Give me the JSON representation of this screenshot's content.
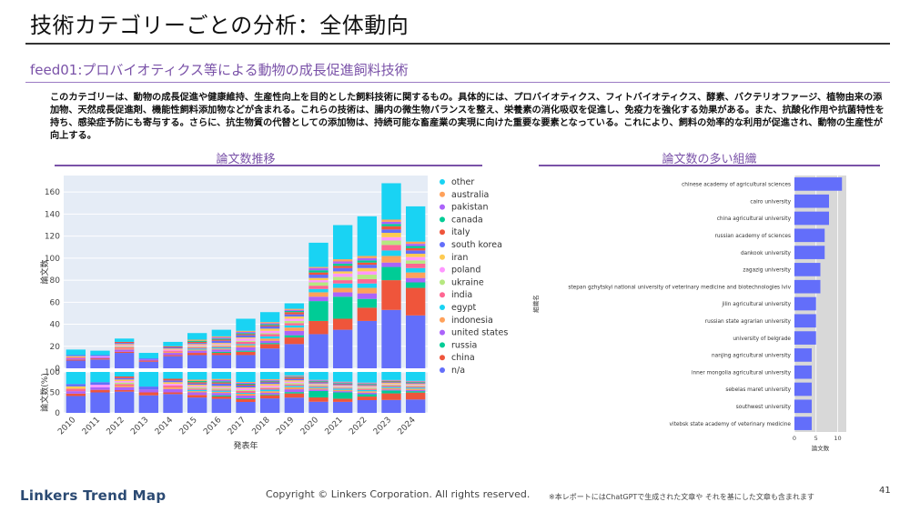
{
  "header": {
    "title": "技術カテゴリーごとの分析：全体動向",
    "subtitle": "feed01:プロバイオティクス等による動物の成長促進飼料技術",
    "description": "このカテゴリーは、動物の成長促進や健康維持、生産性向上を目的とした飼料技術に関するもの。具体的には、プロバイオティクス、フィトバイオティクス、酵素、バクテリオファージ、植物由来の添加物、天然成長促進剤、機能性飼料添加物などが含まれる。これらの技術は、腸内の微生物バランスを整え、栄養素の消化吸収を促進し、免疫力を強化する効果がある。また、抗酸化作用や抗菌特性を持ち、感染症予防にも寄与する。さらに、抗生物質の代替としての添加物は、持続可能な畜産業の実現に向けた重要な要素となっている。これにより、飼料の効率的な利用が促進され、動物の生産性が向上する。"
  },
  "left_panel": {
    "title": "論文数推移"
  },
  "right_panel": {
    "title": "論文数の多い組織"
  },
  "footer": {
    "logo": "Linkers Trend Map",
    "copyright": "Copyright © Linkers Corporation. All rights reserved.",
    "note": "※本レポートにはChatGPTで生成された文章や それを基にした文章も含まれます",
    "page": "41"
  },
  "chart_data": [
    {
      "type": "bar",
      "stacked": true,
      "xlabel": "発表年",
      "ylabel": "論文数",
      "ylabel_share": "論文数(%)",
      "ylim": [
        0,
        175
      ],
      "yticks": [
        0,
        20,
        40,
        60,
        80,
        100,
        120,
        140,
        160
      ],
      "share_yticks": [
        0,
        50,
        100
      ],
      "categories": [
        "2010",
        "2011",
        "2012",
        "2013",
        "2014",
        "2015",
        "2016",
        "2017",
        "2018",
        "2019",
        "2020",
        "2021",
        "2022",
        "2023",
        "2024"
      ],
      "series": [
        {
          "name": "n/a",
          "color": "#636efa",
          "values": [
            7,
            8,
            14,
            6,
            11,
            12,
            12,
            12,
            18,
            22,
            31,
            35,
            43,
            53,
            48
          ]
        },
        {
          "name": "china",
          "color": "#ef553b",
          "values": [
            1,
            1,
            1,
            1,
            1,
            2,
            2,
            3,
            4,
            6,
            12,
            10,
            12,
            27,
            25
          ]
        },
        {
          "name": "russia",
          "color": "#00cc96",
          "values": [
            0,
            0,
            0,
            0,
            0,
            0,
            1,
            1,
            1,
            2,
            18,
            20,
            8,
            12,
            5
          ]
        },
        {
          "name": "united states",
          "color": "#ab63fa",
          "values": [
            1,
            1,
            2,
            1,
            2,
            2,
            2,
            3,
            2,
            4,
            4,
            4,
            5,
            4,
            4
          ]
        },
        {
          "name": "indonesia",
          "color": "#ffa15a",
          "values": [
            0,
            0,
            1,
            0,
            1,
            1,
            1,
            2,
            2,
            3,
            4,
            4,
            5,
            6,
            5
          ]
        },
        {
          "name": "egypt",
          "color": "#19d3f3",
          "values": [
            0,
            0,
            0,
            0,
            0,
            1,
            1,
            1,
            2,
            2,
            3,
            4,
            4,
            5,
            4
          ]
        },
        {
          "name": "india",
          "color": "#ff6692",
          "values": [
            1,
            0,
            1,
            0,
            1,
            1,
            1,
            2,
            2,
            2,
            3,
            3,
            4,
            5,
            4
          ]
        },
        {
          "name": "ukraine",
          "color": "#b6e880",
          "values": [
            0,
            0,
            1,
            0,
            0,
            1,
            1,
            1,
            1,
            2,
            3,
            3,
            4,
            4,
            3
          ]
        },
        {
          "name": "poland",
          "color": "#ff97ff",
          "values": [
            0,
            1,
            1,
            0,
            1,
            1,
            1,
            2,
            2,
            2,
            2,
            3,
            3,
            3,
            3
          ]
        },
        {
          "name": "iran",
          "color": "#fecb52",
          "values": [
            1,
            0,
            1,
            0,
            1,
            1,
            1,
            1,
            2,
            2,
            2,
            2,
            3,
            4,
            3
          ]
        },
        {
          "name": "south korea",
          "color": "#636efa",
          "values": [
            1,
            1,
            1,
            1,
            1,
            1,
            2,
            2,
            2,
            2,
            3,
            3,
            3,
            3,
            3
          ]
        },
        {
          "name": "italy",
          "color": "#ef553b",
          "values": [
            0,
            0,
            1,
            0,
            1,
            1,
            1,
            1,
            1,
            2,
            2,
            2,
            2,
            3,
            2
          ]
        },
        {
          "name": "canada",
          "color": "#00cc96",
          "values": [
            0,
            0,
            0,
            0,
            0,
            1,
            1,
            1,
            1,
            1,
            2,
            2,
            2,
            2,
            2
          ]
        },
        {
          "name": "pakistan",
          "color": "#ab63fa",
          "values": [
            0,
            0,
            0,
            0,
            0,
            0,
            1,
            1,
            1,
            1,
            2,
            2,
            2,
            2,
            2
          ]
        },
        {
          "name": "australia",
          "color": "#ffa15a",
          "values": [
            0,
            0,
            0,
            0,
            0,
            1,
            1,
            1,
            1,
            1,
            1,
            2,
            2,
            2,
            2
          ]
        },
        {
          "name": "other",
          "color": "#19d3f3",
          "values": [
            5,
            4,
            3,
            5,
            4,
            6,
            6,
            11,
            9,
            5,
            22,
            31,
            36,
            33,
            32
          ]
        }
      ]
    },
    {
      "type": "bar",
      "orientation": "horizontal",
      "xlabel": "論文数",
      "ylabel": "組織名",
      "xlim": [
        0,
        12
      ],
      "xticks": [
        0,
        5,
        10
      ],
      "color": "#636efa",
      "categories": [
        "chinese academy of agricultural sciences",
        "cairo university",
        "china agricultural university",
        "russian academy of sciences",
        "dankook university",
        "zagazig university",
        "stepan gzhytskyi national university of veterinary medicine and biotechnologies lviv",
        "jilin agricultural university",
        "russian state agrarian university",
        "university of belgrade",
        "nanjing agricultural university",
        "inner mongolia agricultural university",
        "sebelas maret university",
        "southwest university",
        "vitebsk state academy of veterinary medicine"
      ],
      "values": [
        11,
        8,
        8,
        7,
        7,
        6,
        6,
        5,
        5,
        5,
        4,
        4,
        4,
        4,
        4
      ]
    }
  ]
}
